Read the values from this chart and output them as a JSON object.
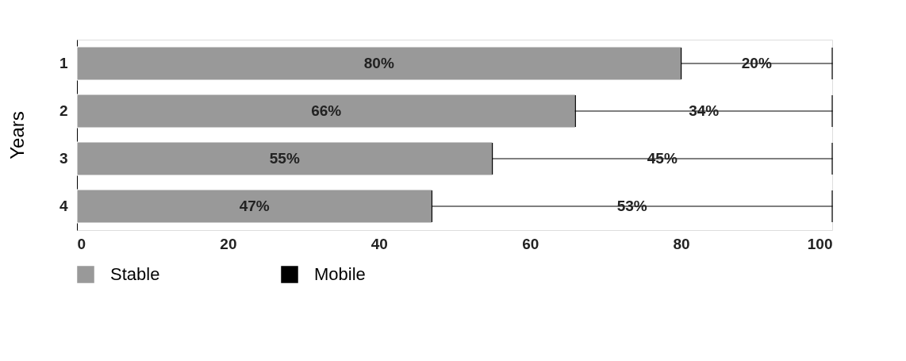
{
  "chart_data": {
    "type": "bar",
    "orientation": "horizontal",
    "stacked": true,
    "ylabel": "Years",
    "categories": [
      "1",
      "2",
      "3",
      "4"
    ],
    "series": [
      {
        "name": "Stable",
        "color": "#999999",
        "values": [
          80,
          66,
          55,
          47
        ],
        "value_labels": [
          "80%",
          "66%",
          "55%",
          "47%"
        ]
      },
      {
        "name": "Mobile",
        "color": "#000000",
        "line_style": "solid",
        "values": [
          20,
          34,
          45,
          53
        ],
        "value_labels": [
          "20%",
          "34%",
          "45%",
          "53%"
        ]
      }
    ],
    "xlim": [
      0,
      100
    ],
    "xticks": [
      0,
      20,
      40,
      60,
      80,
      100
    ],
    "grid": false,
    "legend": "bottom"
  }
}
